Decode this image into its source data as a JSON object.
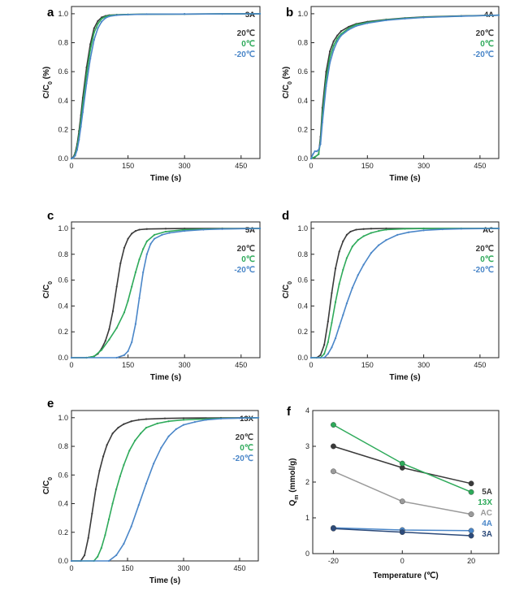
{
  "figure": {
    "legend_temps": [
      "20℃",
      "0℃",
      "-20℃"
    ],
    "f_legend": [
      "5A",
      "13X",
      "AC",
      "4A",
      "3A"
    ]
  },
  "chart_data": [
    {
      "panel": "a",
      "title": "3A",
      "type": "line",
      "xlabel": "Time (s)",
      "ylabel": "C/C0 (%)",
      "xlim": [
        0,
        500
      ],
      "ylim": [
        0,
        1.05
      ],
      "xticks": [
        0,
        150,
        300,
        450
      ],
      "yticks": [
        0.0,
        0.2,
        0.4,
        0.6,
        0.8,
        1.0
      ],
      "colors": [
        "#3a3a3a",
        "#2eaa5a",
        "#4a86c8"
      ],
      "series": [
        {
          "name": "20℃",
          "x": [
            0,
            5,
            10,
            15,
            20,
            25,
            30,
            40,
            50,
            60,
            70,
            80,
            90,
            100,
            120,
            150,
            200,
            300,
            400,
            500
          ],
          "y": [
            0,
            0.01,
            0.04,
            0.1,
            0.19,
            0.3,
            0.42,
            0.63,
            0.79,
            0.9,
            0.95,
            0.975,
            0.985,
            0.99,
            0.993,
            0.995,
            0.997,
            0.998,
            0.999,
            1.0
          ]
        },
        {
          "name": "0℃",
          "x": [
            0,
            5,
            10,
            15,
            20,
            25,
            30,
            40,
            50,
            60,
            70,
            80,
            90,
            100,
            120,
            150,
            200,
            300,
            400,
            500
          ],
          "y": [
            0,
            0.005,
            0.03,
            0.08,
            0.16,
            0.26,
            0.37,
            0.58,
            0.75,
            0.87,
            0.93,
            0.965,
            0.98,
            0.987,
            0.992,
            0.995,
            0.997,
            0.998,
            0.999,
            1.0
          ]
        },
        {
          "name": "-20℃",
          "x": [
            0,
            5,
            10,
            15,
            20,
            25,
            30,
            40,
            50,
            60,
            70,
            80,
            90,
            100,
            120,
            150,
            200,
            300,
            400,
            500
          ],
          "y": [
            0,
            0.005,
            0.02,
            0.06,
            0.13,
            0.22,
            0.32,
            0.52,
            0.69,
            0.82,
            0.9,
            0.945,
            0.97,
            0.982,
            0.99,
            0.994,
            0.997,
            0.998,
            0.999,
            1.0
          ]
        }
      ]
    },
    {
      "panel": "b",
      "title": "4A",
      "type": "line",
      "xlabel": "Time (s)",
      "ylabel": "C/C0 (%)",
      "xlim": [
        0,
        500
      ],
      "ylim": [
        0,
        1.05
      ],
      "xticks": [
        0,
        150,
        300,
        450
      ],
      "yticks": [
        0.0,
        0.2,
        0.4,
        0.6,
        0.8,
        1.0
      ],
      "colors": [
        "#3a3a3a",
        "#2eaa5a",
        "#4a86c8"
      ],
      "series": [
        {
          "name": "20℃",
          "x": [
            0,
            10,
            20,
            25,
            30,
            40,
            50,
            60,
            70,
            80,
            100,
            120,
            150,
            200,
            250,
            300,
            400,
            500
          ],
          "y": [
            0,
            0.01,
            0.03,
            0.15,
            0.35,
            0.6,
            0.74,
            0.81,
            0.85,
            0.88,
            0.91,
            0.93,
            0.945,
            0.96,
            0.97,
            0.978,
            0.985,
            0.99
          ]
        },
        {
          "name": "0℃",
          "x": [
            0,
            10,
            20,
            25,
            30,
            40,
            50,
            60,
            70,
            80,
            100,
            120,
            150,
            200,
            250,
            300,
            400,
            500
          ],
          "y": [
            0,
            0.01,
            0.03,
            0.12,
            0.3,
            0.55,
            0.7,
            0.78,
            0.83,
            0.86,
            0.9,
            0.925,
            0.94,
            0.958,
            0.968,
            0.976,
            0.984,
            0.99
          ]
        },
        {
          "name": "-20℃",
          "x": [
            0,
            5,
            10,
            15,
            20,
            25,
            30,
            40,
            50,
            60,
            70,
            80,
            100,
            120,
            150,
            200,
            250,
            300,
            400,
            500
          ],
          "y": [
            0,
            0.03,
            0.05,
            0.05,
            0.06,
            0.1,
            0.25,
            0.5,
            0.66,
            0.75,
            0.81,
            0.85,
            0.89,
            0.915,
            0.935,
            0.955,
            0.966,
            0.974,
            0.983,
            0.99
          ]
        }
      ]
    },
    {
      "panel": "c",
      "title": "5A",
      "type": "line",
      "xlabel": "Time (s)",
      "ylabel": "C/C0",
      "xlim": [
        0,
        500
      ],
      "ylim": [
        0,
        1.05
      ],
      "xticks": [
        0,
        150,
        300,
        450
      ],
      "yticks": [
        0.0,
        0.2,
        0.4,
        0.6,
        0.8,
        1.0
      ],
      "colors": [
        "#3a3a3a",
        "#2eaa5a",
        "#4a86c8"
      ],
      "series": [
        {
          "name": "20℃",
          "x": [
            0,
            40,
            60,
            70,
            80,
            90,
            100,
            110,
            120,
            130,
            140,
            150,
            160,
            170,
            180,
            200,
            250,
            300,
            400,
            500
          ],
          "y": [
            0,
            0,
            0.01,
            0.03,
            0.07,
            0.13,
            0.22,
            0.36,
            0.55,
            0.73,
            0.85,
            0.92,
            0.96,
            0.98,
            0.99,
            0.995,
            0.998,
            0.999,
            1.0,
            1.0
          ]
        },
        {
          "name": "0℃",
          "x": [
            0,
            40,
            60,
            80,
            100,
            120,
            140,
            150,
            160,
            170,
            180,
            190,
            200,
            220,
            250,
            300,
            400,
            500
          ],
          "y": [
            0,
            0,
            0.01,
            0.06,
            0.14,
            0.23,
            0.35,
            0.44,
            0.55,
            0.66,
            0.76,
            0.84,
            0.9,
            0.95,
            0.975,
            0.99,
            0.997,
            1.0
          ]
        },
        {
          "name": "-20℃",
          "x": [
            0,
            120,
            140,
            150,
            160,
            170,
            180,
            190,
            200,
            210,
            220,
            240,
            260,
            300,
            350,
            400,
            500
          ],
          "y": [
            0,
            0,
            0.02,
            0.05,
            0.12,
            0.26,
            0.46,
            0.66,
            0.8,
            0.88,
            0.92,
            0.95,
            0.965,
            0.98,
            0.99,
            0.995,
            1.0
          ]
        }
      ]
    },
    {
      "panel": "d",
      "title": "AC",
      "type": "line",
      "xlabel": "Time (s)",
      "ylabel": "C/C0",
      "xlim": [
        0,
        500
      ],
      "ylim": [
        0,
        1.05
      ],
      "xticks": [
        0,
        150,
        300,
        450
      ],
      "yticks": [
        0.0,
        0.2,
        0.4,
        0.6,
        0.8,
        1.0
      ],
      "colors": [
        "#3a3a3a",
        "#2eaa5a",
        "#4a86c8"
      ],
      "series": [
        {
          "name": "20℃",
          "x": [
            0,
            15,
            25,
            35,
            45,
            55,
            65,
            75,
            85,
            95,
            105,
            120,
            140,
            160,
            200,
            300,
            400,
            500
          ],
          "y": [
            0,
            0,
            0.02,
            0.1,
            0.28,
            0.5,
            0.69,
            0.82,
            0.9,
            0.95,
            0.975,
            0.99,
            0.995,
            0.998,
            1.0,
            1.0,
            1.0,
            1.0
          ]
        },
        {
          "name": "0℃",
          "x": [
            0,
            25,
            35,
            45,
            55,
            65,
            75,
            85,
            95,
            110,
            125,
            140,
            160,
            180,
            200,
            250,
            300,
            400,
            500
          ],
          "y": [
            0,
            0,
            0.03,
            0.12,
            0.27,
            0.43,
            0.57,
            0.68,
            0.77,
            0.86,
            0.91,
            0.94,
            0.965,
            0.98,
            0.99,
            0.997,
            0.999,
            1.0,
            1.0
          ]
        },
        {
          "name": "-20℃",
          "x": [
            0,
            35,
            45,
            55,
            65,
            75,
            85,
            95,
            110,
            125,
            140,
            160,
            180,
            200,
            230,
            260,
            300,
            350,
            400,
            500
          ],
          "y": [
            0,
            0,
            0.03,
            0.08,
            0.15,
            0.24,
            0.33,
            0.42,
            0.54,
            0.64,
            0.72,
            0.81,
            0.87,
            0.91,
            0.95,
            0.97,
            0.985,
            0.993,
            0.997,
            1.0
          ]
        }
      ]
    },
    {
      "panel": "e",
      "title": "13X",
      "type": "line",
      "xlabel": "Time (s)",
      "ylabel": "C/C0",
      "xlim": [
        0,
        500
      ],
      "ylim": [
        0,
        1.05
      ],
      "xticks": [
        0,
        150,
        300,
        450
      ],
      "yticks": [
        0.0,
        0.2,
        0.4,
        0.6,
        0.8,
        1.0
      ],
      "colors": [
        "#3a3a3a",
        "#2eaa5a",
        "#4a86c8"
      ],
      "series": [
        {
          "name": "20℃",
          "x": [
            0,
            25,
            35,
            45,
            55,
            65,
            75,
            85,
            95,
            110,
            125,
            140,
            160,
            180,
            200,
            250,
            300,
            400,
            500
          ],
          "y": [
            0,
            0,
            0.04,
            0.16,
            0.33,
            0.5,
            0.63,
            0.73,
            0.81,
            0.89,
            0.93,
            0.955,
            0.975,
            0.985,
            0.99,
            0.995,
            0.997,
            0.999,
            1.0
          ]
        },
        {
          "name": "0℃",
          "x": [
            0,
            60,
            70,
            80,
            90,
            100,
            110,
            120,
            130,
            140,
            155,
            170,
            185,
            200,
            230,
            260,
            300,
            400,
            500
          ],
          "y": [
            0,
            0,
            0.03,
            0.09,
            0.18,
            0.29,
            0.4,
            0.5,
            0.59,
            0.67,
            0.77,
            0.84,
            0.89,
            0.93,
            0.96,
            0.975,
            0.985,
            0.995,
            1.0
          ]
        },
        {
          "name": "-20℃",
          "x": [
            0,
            100,
            120,
            140,
            160,
            180,
            200,
            220,
            240,
            260,
            280,
            300,
            330,
            360,
            400,
            450,
            500
          ],
          "y": [
            0,
            0,
            0.04,
            0.12,
            0.24,
            0.39,
            0.54,
            0.68,
            0.79,
            0.87,
            0.92,
            0.95,
            0.97,
            0.985,
            0.993,
            0.997,
            1.0
          ]
        }
      ]
    },
    {
      "panel": "f",
      "type": "line",
      "xlabel": "Temperature (℃)",
      "ylabel": "Qm (mmol/g)",
      "xlim": [
        -26,
        28
      ],
      "ylim": [
        0,
        4
      ],
      "xticks": [
        -20,
        0,
        20
      ],
      "yticks": [
        0,
        1,
        2,
        3,
        4
      ],
      "x": [
        -20,
        0,
        20
      ],
      "series": [
        {
          "name": "5A",
          "color": "#3a3a3a",
          "values": [
            3.0,
            2.4,
            1.96
          ]
        },
        {
          "name": "13X",
          "color": "#2eaa5a",
          "values": [
            3.6,
            2.52,
            1.72
          ]
        },
        {
          "name": "AC",
          "color": "#9a9a9a",
          "values": [
            2.3,
            1.46,
            1.1
          ]
        },
        {
          "name": "4A",
          "color": "#4a86c8",
          "values": [
            0.72,
            0.66,
            0.64
          ]
        },
        {
          "name": "3A",
          "color": "#2c4a7a",
          "values": [
            0.7,
            0.6,
            0.5
          ]
        }
      ]
    }
  ]
}
